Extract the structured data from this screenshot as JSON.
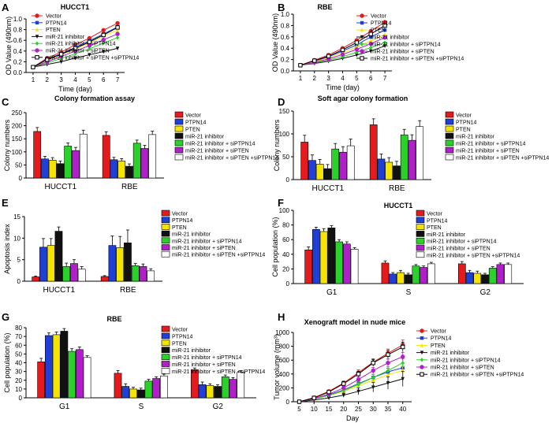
{
  "legend_labels": [
    "Vector",
    "PTPN14",
    "PTEN",
    "miR-21 inhibitor",
    "miR-21 inhibitor + siPTPN14",
    "miR-21 inhibitor + siPTEN",
    "miR-21 inhibitor + siPTEN +siPTPN14"
  ],
  "series_colors": [
    "#e41a1c",
    "#1f3fd6",
    "#f5e400",
    "#111111",
    "#2ad12a",
    "#b020c8",
    "#ffffff"
  ],
  "chart_data": [
    {
      "panel": "A",
      "type": "line",
      "title": "HUCCT1",
      "xlabel": "Time (day)",
      "ylabel": "OD Value (490nm)",
      "x": [
        1,
        2,
        3,
        4,
        5,
        6,
        7
      ],
      "xlim": [
        0.5,
        7.5
      ],
      "ylim": [
        0,
        1.0
      ],
      "yticks": [
        "0.0",
        "0.2",
        "0.4",
        "0.6",
        "0.8",
        "1.0"
      ],
      "series": [
        {
          "name": "Vector",
          "values": [
            0.1,
            0.27,
            0.38,
            0.52,
            0.64,
            0.79,
            0.92
          ]
        },
        {
          "name": "PTPN14",
          "values": [
            0.1,
            0.25,
            0.35,
            0.47,
            0.59,
            0.72,
            0.85
          ]
        },
        {
          "name": "PTEN",
          "values": [
            0.1,
            0.23,
            0.33,
            0.44,
            0.55,
            0.68,
            0.79
          ]
        },
        {
          "name": "miR-21 inhibitor",
          "values": [
            0.1,
            0.15,
            0.2,
            0.27,
            0.33,
            0.39,
            0.45
          ]
        },
        {
          "name": "miR-21 inhibitor + siPTPN14",
          "values": [
            0.1,
            0.18,
            0.26,
            0.35,
            0.44,
            0.55,
            0.65
          ]
        },
        {
          "name": "miR-21 inhibitor + siPTEN",
          "values": [
            0.1,
            0.2,
            0.3,
            0.4,
            0.5,
            0.61,
            0.72
          ]
        },
        {
          "name": "miR-21 inhibitor + siPTEN +siPTPN14",
          "values": [
            0.1,
            0.24,
            0.34,
            0.45,
            0.57,
            0.7,
            0.84
          ]
        }
      ]
    },
    {
      "panel": "B",
      "type": "line",
      "title": "RBE",
      "xlabel": "Time (day)",
      "ylabel": "OD Value (490nm)",
      "x": [
        1,
        2,
        3,
        4,
        5,
        6,
        7
      ],
      "xlim": [
        0.5,
        7.5
      ],
      "ylim": [
        0,
        1.0
      ],
      "yticks": [
        "0.0",
        "0.2",
        "0.4",
        "0.6",
        "0.8",
        "1.0"
      ],
      "series": [
        {
          "name": "Vector",
          "values": [
            0.1,
            0.19,
            0.28,
            0.4,
            0.54,
            0.7,
            0.86
          ]
        },
        {
          "name": "PTPN14",
          "values": [
            0.1,
            0.17,
            0.25,
            0.35,
            0.46,
            0.6,
            0.72
          ]
        },
        {
          "name": "PTEN",
          "values": [
            0.1,
            0.16,
            0.23,
            0.32,
            0.42,
            0.53,
            0.64
          ]
        },
        {
          "name": "miR-21 inhibitor",
          "values": [
            0.1,
            0.13,
            0.17,
            0.22,
            0.28,
            0.35,
            0.44
          ]
        },
        {
          "name": "miR-21 inhibitor + siPTPN14",
          "values": [
            0.1,
            0.14,
            0.19,
            0.25,
            0.33,
            0.41,
            0.5
          ]
        },
        {
          "name": "miR-21 inhibitor + siPTEN",
          "values": [
            0.1,
            0.15,
            0.21,
            0.29,
            0.38,
            0.48,
            0.59
          ]
        },
        {
          "name": "miR-21 inhibitor + siPTEN +siPTPN14",
          "values": [
            0.1,
            0.18,
            0.26,
            0.37,
            0.5,
            0.65,
            0.8
          ]
        }
      ]
    },
    {
      "panel": "C",
      "type": "bar",
      "title": "Colony formation assay",
      "xlabel": "",
      "ylabel": "Colony numbers",
      "categories": [
        "HUCCT1",
        "RBE"
      ],
      "ylim": [
        0,
        250
      ],
      "yticks": [
        "0",
        "50",
        "100",
        "150",
        "200",
        "250"
      ],
      "series": [
        {
          "name": "Vector",
          "values": [
            178,
            163
          ],
          "err": [
            15,
            14
          ]
        },
        {
          "name": "PTPN14",
          "values": [
            73,
            70
          ],
          "err": [
            10,
            9
          ]
        },
        {
          "name": "PTEN",
          "values": [
            68,
            65
          ],
          "err": [
            10,
            9
          ]
        },
        {
          "name": "miR-21 inhibitor",
          "values": [
            55,
            45
          ],
          "err": [
            10,
            9
          ]
        },
        {
          "name": "miR-21 inhibitor + siPTPN14",
          "values": [
            122,
            133
          ],
          "err": [
            12,
            12
          ]
        },
        {
          "name": "miR-21 inhibitor + siPTEN",
          "values": [
            105,
            113
          ],
          "err": [
            12,
            12
          ]
        },
        {
          "name": "miR-21 inhibitor + siPTEN +siPTPN14",
          "values": [
            168,
            166
          ],
          "err": [
            15,
            13
          ]
        }
      ]
    },
    {
      "panel": "D",
      "type": "bar",
      "title": "Soft agar colony formation",
      "xlabel": "",
      "ylabel": "Colony numbers",
      "categories": [
        "HUCCT1",
        "RBE"
      ],
      "ylim": [
        0,
        150
      ],
      "yticks": [
        "0",
        "50",
        "100",
        "150"
      ],
      "series": [
        {
          "name": "Vector",
          "values": [
            82,
            120
          ],
          "err": [
            15,
            13
          ]
        },
        {
          "name": "PTPN14",
          "values": [
            42,
            45
          ],
          "err": [
            12,
            11
          ]
        },
        {
          "name": "PTEN",
          "values": [
            34,
            38
          ],
          "err": [
            10,
            10
          ]
        },
        {
          "name": "miR-21 inhibitor",
          "values": [
            24,
            30
          ],
          "err": [
            9,
            10
          ]
        },
        {
          "name": "miR-21 inhibitor + siPTPN14",
          "values": [
            67,
            98
          ],
          "err": [
            12,
            12
          ]
        },
        {
          "name": "miR-21 inhibitor + siPTEN",
          "values": [
            60,
            86
          ],
          "err": [
            12,
            12
          ]
        },
        {
          "name": "miR-21 inhibitor + siPTEN +siPTPN14",
          "values": [
            74,
            116
          ],
          "err": [
            15,
            13
          ]
        }
      ]
    },
    {
      "panel": "E",
      "type": "bar",
      "title": "",
      "xlabel": "",
      "ylabel": "Apoptosis index",
      "categories": [
        "HUCCT1",
        "RBE"
      ],
      "ylim": [
        0,
        15
      ],
      "yticks": [
        "0",
        "5",
        "10",
        "15"
      ],
      "series": [
        {
          "name": "Vector",
          "values": [
            1.0,
            1.1
          ],
          "err": [
            0.2,
            0.2
          ]
        },
        {
          "name": "PTPN14",
          "values": [
            7.9,
            8.3
          ],
          "err": [
            2.0,
            2.2
          ]
        },
        {
          "name": "PTEN",
          "values": [
            8.3,
            7.8
          ],
          "err": [
            1.6,
            2.6
          ]
        },
        {
          "name": "miR-21 inhibitor",
          "values": [
            11.6,
            8.9
          ],
          "err": [
            1.0,
            3.0
          ]
        },
        {
          "name": "miR-21 inhibitor + siPTPN14",
          "values": [
            3.4,
            3.6
          ],
          "err": [
            0.8,
            0.5
          ]
        },
        {
          "name": "miR-21 inhibitor + siPTEN",
          "values": [
            4.1,
            3.4
          ],
          "err": [
            0.9,
            0.6
          ]
        },
        {
          "name": "miR-21 inhibitor + siPTEN +siPTPN14",
          "values": [
            2.8,
            2.4
          ],
          "err": [
            0.6,
            0.5
          ]
        }
      ]
    },
    {
      "panel": "F",
      "type": "bar",
      "title": "HUCCT1",
      "xlabel": "",
      "ylabel": "Cell population (%)",
      "categories": [
        "G1",
        "S",
        "G2"
      ],
      "ylim": [
        0,
        100
      ],
      "yticks": [
        "0",
        "20",
        "40",
        "60",
        "80",
        "100"
      ],
      "series": [
        {
          "name": "Vector",
          "values": [
            46,
            28,
            27
          ],
          "err": [
            4,
            3,
            3
          ]
        },
        {
          "name": "PTPN14",
          "values": [
            74,
            13,
            15
          ],
          "err": [
            3,
            2,
            3
          ]
        },
        {
          "name": "PTEN",
          "values": [
            71,
            15,
            14
          ],
          "err": [
            4,
            3,
            3
          ]
        },
        {
          "name": "miR-21 inhibitor",
          "values": [
            76,
            12,
            12
          ],
          "err": [
            3,
            2,
            2
          ]
        },
        {
          "name": "miR-21 inhibitor + siPTPN14",
          "values": [
            57,
            24,
            21
          ],
          "err": [
            3,
            2,
            2
          ]
        },
        {
          "name": "miR-21 inhibitor + siPTEN",
          "values": [
            54,
            22,
            26
          ],
          "err": [
            3,
            2,
            2
          ]
        },
        {
          "name": "miR-21 inhibitor + siPTEN +siPTPN14",
          "values": [
            47,
            27,
            26
          ],
          "err": [
            2,
            2,
            2
          ]
        }
      ]
    },
    {
      "panel": "G",
      "type": "bar",
      "title": "RBE",
      "xlabel": "",
      "ylabel": "Cell population (%)",
      "categories": [
        "G1",
        "S",
        "G2"
      ],
      "ylim": [
        0,
        80
      ],
      "yticks": [
        "0",
        "10",
        "20",
        "30",
        "40",
        "50",
        "60",
        "70",
        "80"
      ],
      "series": [
        {
          "name": "Vector",
          "values": [
            41,
            28,
            32
          ],
          "err": [
            4,
            3,
            2
          ]
        },
        {
          "name": "PTPN14",
          "values": [
            71,
            13,
            15
          ],
          "err": [
            3,
            3,
            3
          ]
        },
        {
          "name": "PTEN",
          "values": [
            72,
            10,
            14
          ],
          "err": [
            3,
            2,
            2
          ]
        },
        {
          "name": "miR-21 inhibitor",
          "values": [
            76,
            9,
            13
          ],
          "err": [
            3,
            2,
            2
          ]
        },
        {
          "name": "miR-21 inhibitor + siPTPN14",
          "values": [
            53,
            19,
            24
          ],
          "err": [
            3,
            2,
            2
          ]
        },
        {
          "name": "miR-21 inhibitor + siPTEN",
          "values": [
            55,
            22,
            21
          ],
          "err": [
            3,
            2,
            2
          ]
        },
        {
          "name": "miR-21 inhibitor + siPTEN +siPTPN14",
          "values": [
            46,
            25,
            29
          ],
          "err": [
            2,
            2,
            2
          ]
        }
      ]
    },
    {
      "panel": "H",
      "type": "line",
      "title": "Xenograft model in nude mice",
      "xlabel": "Day",
      "ylabel": "Tumor volume (mm³)",
      "x": [
        5,
        10,
        15,
        20,
        25,
        30,
        35,
        40
      ],
      "xlim": [
        3,
        43
      ],
      "ylim": [
        0,
        1000
      ],
      "yticks": [
        "0",
        "200",
        "400",
        "600",
        "800",
        "1000"
      ],
      "series": [
        {
          "name": "Vector",
          "values": [
            0,
            60,
            150,
            270,
            420,
            570,
            700,
            820
          ],
          "err": [
            0,
            10,
            20,
            30,
            40,
            50,
            60,
            70
          ]
        },
        {
          "name": "PTPN14",
          "values": [
            0,
            45,
            100,
            170,
            260,
            350,
            430,
            490
          ],
          "err": [
            0,
            8,
            15,
            25,
            35,
            45,
            55,
            60
          ]
        },
        {
          "name": "PTEN",
          "values": [
            0,
            40,
            90,
            150,
            230,
            310,
            390,
            450
          ],
          "err": [
            0,
            8,
            15,
            25,
            35,
            45,
            55,
            60
          ]
        },
        {
          "name": "miR-21 inhibitor",
          "values": [
            0,
            25,
            55,
            95,
            150,
            210,
            270,
            330
          ],
          "err": [
            0,
            8,
            15,
            30,
            50,
            70,
            90,
            110
          ]
        },
        {
          "name": "miR-21 inhibitor + siPTPN14",
          "values": [
            0,
            40,
            90,
            160,
            250,
            350,
            450,
            560
          ],
          "err": [
            0,
            8,
            15,
            25,
            35,
            45,
            55,
            60
          ]
        },
        {
          "name": "miR-21 inhibitor + siPTEN",
          "values": [
            0,
            45,
            110,
            200,
            320,
            450,
            560,
            650
          ],
          "err": [
            0,
            8,
            15,
            25,
            35,
            45,
            55,
            60
          ]
        },
        {
          "name": "miR-21 inhibitor + siPTEN +siPTPN14",
          "values": [
            0,
            55,
            140,
            260,
            400,
            560,
            680,
            790
          ],
          "err": [
            0,
            10,
            20,
            30,
            40,
            50,
            60,
            70
          ]
        }
      ]
    }
  ]
}
